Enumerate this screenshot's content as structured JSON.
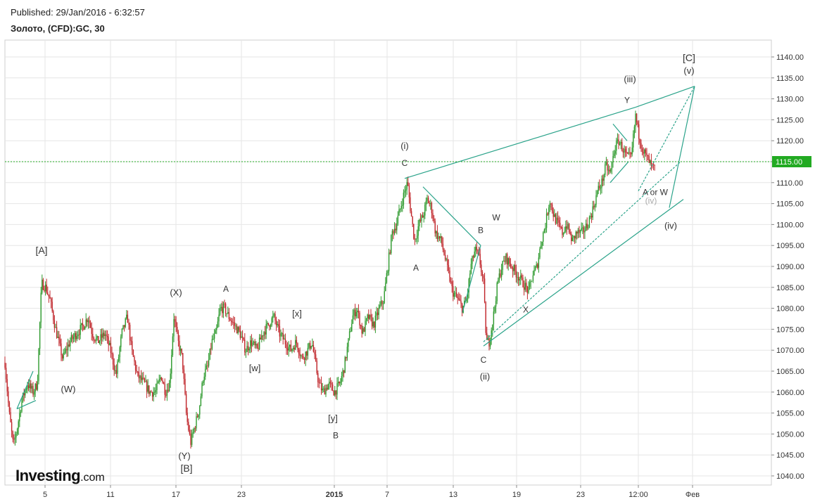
{
  "header": {
    "published": "Published: 29/Jan/2016 - 6:32:57",
    "symbol": "Золото, (CFD):GC, 30"
  },
  "logo": {
    "name": "Investing",
    "tld": ".com"
  },
  "chart_data": {
    "type": "candlestick",
    "title": "",
    "y_ticks": [
      1040,
      1045,
      1050,
      1055,
      1060,
      1065,
      1070,
      1075,
      1080,
      1085,
      1090,
      1095,
      1100,
      1105,
      1110,
      1115,
      1120,
      1125,
      1130,
      1135,
      1140
    ],
    "y_tick_labels": [
      "1040.00",
      "1045.00",
      "1050.00",
      "1055.00",
      "1060.00",
      "1065.00",
      "1070.00",
      "1075.00",
      "1080.00",
      "1085.00",
      "1090.00",
      "1095.00",
      "1100.00",
      "1105.00",
      "1110.00",
      "1115.00",
      "1120.00",
      "1125.00",
      "1130.00",
      "1135.00",
      "1140.00"
    ],
    "ylim": [
      1038,
      1143
    ],
    "x_ticks": [
      {
        "label": "5",
        "t": 57
      },
      {
        "label": "11",
        "t": 150
      },
      {
        "label": "17",
        "t": 243
      },
      {
        "label": "23",
        "t": 336
      },
      {
        "label": "2015",
        "t": 468,
        "bold": true
      },
      {
        "label": "7",
        "t": 543
      },
      {
        "label": "13",
        "t": 637
      },
      {
        "label": "19",
        "t": 727
      },
      {
        "label": "23",
        "t": 818
      },
      {
        "label": "12:00",
        "t": 900
      },
      {
        "label": "Фев",
        "t": 977
      }
    ],
    "current_price": 1115.0,
    "current_price_label": "1115.00",
    "price_path": [
      [
        0,
        1067
      ],
      [
        6,
        1055
      ],
      [
        12,
        1047
      ],
      [
        18,
        1052
      ],
      [
        24,
        1058
      ],
      [
        32,
        1062
      ],
      [
        40,
        1060
      ],
      [
        46,
        1062
      ],
      [
        52,
        1086
      ],
      [
        58,
        1085
      ],
      [
        64,
        1082
      ],
      [
        72,
        1075
      ],
      [
        82,
        1068
      ],
      [
        92,
        1072
      ],
      [
        102,
        1074
      ],
      [
        112,
        1076
      ],
      [
        118,
        1078
      ],
      [
        124,
        1074
      ],
      [
        132,
        1072
      ],
      [
        142,
        1074
      ],
      [
        150,
        1070
      ],
      [
        158,
        1064
      ],
      [
        166,
        1074
      ],
      [
        174,
        1078
      ],
      [
        180,
        1070
      ],
      [
        188,
        1064
      ],
      [
        198,
        1062
      ],
      [
        206,
        1060
      ],
      [
        214,
        1060
      ],
      [
        222,
        1064
      ],
      [
        228,
        1060
      ],
      [
        234,
        1062
      ],
      [
        240,
        1078
      ],
      [
        246,
        1072
      ],
      [
        252,
        1068
      ],
      [
        258,
        1054
      ],
      [
        264,
        1048
      ],
      [
        270,
        1052
      ],
      [
        276,
        1056
      ],
      [
        282,
        1064
      ],
      [
        288,
        1066
      ],
      [
        294,
        1072
      ],
      [
        300,
        1074
      ],
      [
        306,
        1080
      ],
      [
        312,
        1080
      ],
      [
        318,
        1078
      ],
      [
        326,
        1076
      ],
      [
        334,
        1074
      ],
      [
        342,
        1070
      ],
      [
        350,
        1072
      ],
      [
        358,
        1070
      ],
      [
        366,
        1074
      ],
      [
        374,
        1076
      ],
      [
        382,
        1078
      ],
      [
        390,
        1074
      ],
      [
        398,
        1072
      ],
      [
        406,
        1070
      ],
      [
        414,
        1072
      ],
      [
        422,
        1068
      ],
      [
        430,
        1070
      ],
      [
        436,
        1072
      ],
      [
        440,
        1068
      ],
      [
        446,
        1062
      ],
      [
        452,
        1060
      ],
      [
        460,
        1062
      ],
      [
        468,
        1060
      ],
      [
        476,
        1062
      ],
      [
        482,
        1066
      ],
      [
        488,
        1072
      ],
      [
        494,
        1078
      ],
      [
        500,
        1080
      ],
      [
        508,
        1074
      ],
      [
        516,
        1078
      ],
      [
        524,
        1076
      ],
      [
        532,
        1080
      ],
      [
        538,
        1082
      ],
      [
        544,
        1090
      ],
      [
        550,
        1098
      ],
      [
        556,
        1100
      ],
      [
        562,
        1104
      ],
      [
        568,
        1108
      ],
      [
        572,
        1110
      ],
      [
        576,
        1104
      ],
      [
        582,
        1096
      ],
      [
        588,
        1100
      ],
      [
        594,
        1102
      ],
      [
        600,
        1106
      ],
      [
        606,
        1104
      ],
      [
        612,
        1098
      ],
      [
        620,
        1096
      ],
      [
        628,
        1090
      ],
      [
        636,
        1084
      ],
      [
        644,
        1082
      ],
      [
        650,
        1080
      ],
      [
        656,
        1082
      ],
      [
        662,
        1090
      ],
      [
        668,
        1094
      ],
      [
        674,
        1092
      ],
      [
        680,
        1086
      ],
      [
        684,
        1072
      ],
      [
        688,
        1072
      ],
      [
        694,
        1078
      ],
      [
        700,
        1086
      ],
      [
        706,
        1090
      ],
      [
        712,
        1092
      ],
      [
        720,
        1090
      ],
      [
        728,
        1088
      ],
      [
        736,
        1086
      ],
      [
        744,
        1084
      ],
      [
        750,
        1088
      ],
      [
        756,
        1090
      ],
      [
        762,
        1096
      ],
      [
        768,
        1100
      ],
      [
        774,
        1106
      ],
      [
        780,
        1102
      ],
      [
        786,
        1100
      ],
      [
        792,
        1098
      ],
      [
        798,
        1100
      ],
      [
        806,
        1096
      ],
      [
        812,
        1098
      ],
      [
        820,
        1098
      ],
      [
        828,
        1100
      ],
      [
        836,
        1104
      ],
      [
        842,
        1108
      ],
      [
        848,
        1110
      ],
      [
        854,
        1114
      ],
      [
        860,
        1112
      ],
      [
        866,
        1118
      ],
      [
        872,
        1120
      ],
      [
        878,
        1118
      ],
      [
        884,
        1116
      ],
      [
        890,
        1116
      ],
      [
        896,
        1126
      ],
      [
        900,
        1122
      ],
      [
        906,
        1118
      ],
      [
        912,
        1116
      ],
      [
        918,
        1114
      ],
      [
        924,
        1113
      ]
    ],
    "trendlines": [
      {
        "from": [
          17,
          1056
        ],
        "to": [
          40,
          1065
        ],
        "dashed": false
      },
      {
        "from": [
          17,
          1056
        ],
        "to": [
          44,
          1058
        ],
        "dashed": false
      },
      {
        "from": [
          568,
          1111
        ],
        "to": [
          896,
          1128
        ],
        "dashed": false
      },
      {
        "from": [
          896,
          1128
        ],
        "to": [
          980,
          1133
        ],
        "dashed": false
      },
      {
        "from": [
          594,
          1109
        ],
        "to": [
          676,
          1095
        ],
        "dashed": false
      },
      {
        "from": [
          676,
          1095
        ],
        "to": [
          650,
          1079
        ],
        "dashed": false
      },
      {
        "from": [
          680,
          1071
        ],
        "to": [
          964,
          1106
        ],
        "dashed": false
      },
      {
        "from": [
          680,
          1072
        ],
        "to": [
          960,
          1115
        ],
        "dashed": true
      },
      {
        "from": [
          900,
          1108
        ],
        "to": [
          980,
          1133
        ],
        "dashed": true
      },
      {
        "from": [
          944,
          1104
        ],
        "to": [
          980,
          1133
        ],
        "dashed": false
      },
      {
        "from": [
          860,
          1110
        ],
        "to": [
          886,
          1115
        ],
        "dashed": false
      },
      {
        "from": [
          864,
          1124
        ],
        "to": [
          884,
          1120
        ],
        "dashed": false
      }
    ],
    "annotations": [
      {
        "text": "[A]",
        "t": 52,
        "y": 1093,
        "size": 14,
        "color": "#333"
      },
      {
        "text": "(W)",
        "t": 90,
        "y": 1060,
        "size": 13,
        "color": "#333"
      },
      {
        "text": "(X)",
        "t": 243,
        "y": 1083,
        "size": 13,
        "color": "#333"
      },
      {
        "text": "(Y)",
        "t": 255,
        "y": 1044,
        "size": 13,
        "color": "#333"
      },
      {
        "text": "[B]",
        "t": 258,
        "y": 1041,
        "size": 14,
        "color": "#333"
      },
      {
        "text": "A",
        "t": 314,
        "y": 1084,
        "size": 12,
        "color": "#333"
      },
      {
        "text": "[w]",
        "t": 355,
        "y": 1065,
        "size": 13,
        "color": "#333"
      },
      {
        "text": "[x]",
        "t": 415,
        "y": 1078,
        "size": 13,
        "color": "#333"
      },
      {
        "text": "[y]",
        "t": 466,
        "y": 1053,
        "size": 13,
        "color": "#333"
      },
      {
        "text": "B",
        "t": 470,
        "y": 1049,
        "size": 12,
        "color": "#333"
      },
      {
        "text": "(i)",
        "t": 568,
        "y": 1118,
        "size": 13,
        "color": "#333"
      },
      {
        "text": "C",
        "t": 568,
        "y": 1114,
        "size": 12,
        "color": "#333"
      },
      {
        "text": "A",
        "t": 584,
        "y": 1089,
        "size": 12,
        "color": "#333"
      },
      {
        "text": "B",
        "t": 676,
        "y": 1098,
        "size": 12,
        "color": "#333"
      },
      {
        "text": "W",
        "t": 698,
        "y": 1101,
        "size": 12,
        "color": "#333"
      },
      {
        "text": "C",
        "t": 680,
        "y": 1067,
        "size": 12,
        "color": "#333"
      },
      {
        "text": "(ii)",
        "t": 682,
        "y": 1063,
        "size": 13,
        "color": "#333"
      },
      {
        "text": "X",
        "t": 740,
        "y": 1079,
        "size": 12,
        "color": "#333"
      },
      {
        "text": "(iii)",
        "t": 888,
        "y": 1134,
        "size": 13,
        "color": "#333"
      },
      {
        "text": "Y",
        "t": 884,
        "y": 1129,
        "size": 12,
        "color": "#333"
      },
      {
        "text": "[C]",
        "t": 972,
        "y": 1139,
        "size": 14,
        "color": "#333"
      },
      {
        "text": "(v)",
        "t": 972,
        "y": 1136,
        "size": 13,
        "color": "#333"
      },
      {
        "text": "A or W",
        "t": 924,
        "y": 1107,
        "size": 12,
        "color": "#333"
      },
      {
        "text": "(iv)",
        "t": 918,
        "y": 1105,
        "size": 12,
        "color": "#aaaaaa"
      },
      {
        "text": "(iv)",
        "t": 946,
        "y": 1099,
        "size": 13,
        "color": "#333"
      }
    ],
    "colors": {
      "up": "#2e9a2e",
      "down": "#c0262b",
      "trend": "#2aa38a",
      "price_line": "#22aa22",
      "price_tag_bg": "#22aa22",
      "grid": "#e6e6e6"
    },
    "grid": true
  }
}
